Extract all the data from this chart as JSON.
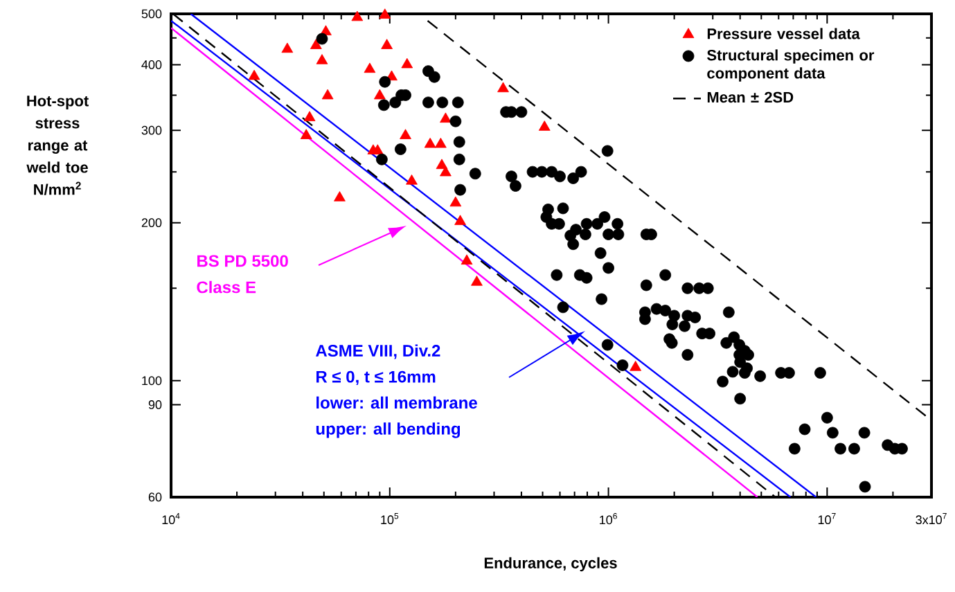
{
  "chart_data": {
    "type": "scatter",
    "xlabel": "Endurance, cycles",
    "ylabel": "Hot-spot stress range at weld toe N/mm$^{2}$",
    "log": "xy",
    "grid": false,
    "legend": "top right",
    "xlim": [
      10000,
      30000000
    ],
    "ylim": [
      60,
      500
    ],
    "xticks": [
      {
        "value": 10000,
        "label": "10$^{4}$"
      },
      {
        "value": 20000,
        "label": null
      },
      {
        "value": 30000,
        "label": null
      },
      {
        "value": 40000,
        "label": null
      },
      {
        "value": 50000,
        "label": null
      },
      {
        "value": 60000,
        "label": null
      },
      {
        "value": 70000,
        "label": null
      },
      {
        "value": 80000,
        "label": null
      },
      {
        "value": 90000,
        "label": null
      },
      {
        "value": 100000,
        "label": "10$^{5}$"
      },
      {
        "value": 200000,
        "label": null
      },
      {
        "value": 300000,
        "label": null
      },
      {
        "value": 400000,
        "label": null
      },
      {
        "value": 500000,
        "label": null
      },
      {
        "value": 600000,
        "label": null
      },
      {
        "value": 700000,
        "label": null
      },
      {
        "value": 800000,
        "label": null
      },
      {
        "value": 900000,
        "label": null
      },
      {
        "value": 1000000,
        "label": "10$^{6}$"
      },
      {
        "value": 2000000,
        "label": null
      },
      {
        "value": 3000000,
        "label": null
      },
      {
        "value": 4000000,
        "label": null
      },
      {
        "value": 5000000,
        "label": null
      },
      {
        "value": 6000000,
        "label": null
      },
      {
        "value": 7000000,
        "label": null
      },
      {
        "value": 8000000,
        "label": null
      },
      {
        "value": 9000000,
        "label": null
      },
      {
        "value": 10000000,
        "label": "10$^{7}$"
      },
      {
        "value": 20000000,
        "label": null
      },
      {
        "value": 30000000,
        "label": "3x10$^{7}$"
      }
    ],
    "yticks": [
      60,
      90,
      100,
      {
        "value": 150,
        "label": null
      },
      200,
      {
        "value": 250,
        "label": null
      },
      300,
      {
        "value": 350,
        "label": null
      },
      400,
      {
        "value": 450,
        "label": null
      },
      500
    ],
    "series": [
      {
        "type": "line",
        "color": "#ff00ff",
        "line_style": "solid",
        "marker": "none",
        "x": [
          10000,
          4800000
        ],
        "values": [
          470,
          60
        ]
      },
      {
        "type": "line",
        "color": "#0000ff",
        "line_style": "solid",
        "marker": "none",
        "x": [
          10000,
          6800000
        ],
        "values": [
          485,
          60
        ]
      },
      {
        "type": "line",
        "color": "#0000ff",
        "line_style": "solid",
        "marker": "none",
        "x": [
          12300,
          8900000
        ],
        "values": [
          500,
          60
        ]
      },
      {
        "type": "line",
        "name": "Mean ± 2SD",
        "color": "#000000",
        "line_style": "dashed",
        "marker": "none",
        "x": [
          10200,
          5800000
        ],
        "values": [
          500,
          60
        ]
      },
      {
        "type": "line",
        "color": "#000000",
        "line_style": "dashed",
        "marker": "none",
        "x": [
          149000,
          30000000
        ],
        "values": [
          485,
          84
        ]
      },
      {
        "name": "Pressure vessel data",
        "color": "#ff0000",
        "marker": "triangle",
        "x": [
          24000,
          34000,
          51000,
          46000,
          49000,
          52000,
          43000,
          41500,
          59000,
          71000,
          95000,
          97000,
          81000,
          102000,
          90000,
          120000,
          118000,
          84000,
          88000,
          126000,
          153000,
          171000,
          180000,
          173000,
          180000,
          200000,
          210000,
          225000,
          250000,
          330000,
          510000,
          1330000
        ],
        "values": [
          380,
          428,
          462,
          435,
          407,
          349,
          317,
          293,
          223,
          492,
          497,
          435,
          392,
          379,
          349,
          400,
          293,
          274,
          274,
          240,
          282,
          282,
          315,
          257,
          249,
          218,
          201,
          169,
          154,
          360,
          304,
          106
        ]
      },
      {
        "name": "Structural specimen or component data",
        "color": "#000000",
        "marker": "circle",
        "x": [
          49000,
          95000,
          94000,
          106000,
          113000,
          118000,
          92000,
          112000,
          150000,
          160000,
          150000,
          174000,
          205000,
          200000,
          208000,
          208000,
          210000,
          246000,
          340000,
          360000,
          400000,
          360000,
          376000,
          450000,
          496000,
          550000,
          600000,
          690000,
          750000,
          990000,
          530000,
          620000,
          520000,
          550000,
          595000,
          670000,
          710000,
          690000,
          785000,
          795000,
          890000,
          960000,
          1100000,
          1000000,
          1110000,
          920000,
          1000000,
          580000,
          740000,
          795000,
          930000,
          620000,
          990000,
          1160000,
          1490000,
          1570000,
          1820000,
          1490000,
          2300000,
          2600000,
          2850000,
          1470000,
          1470000,
          1660000,
          1820000,
          2000000,
          1960000,
          2230000,
          2300000,
          2490000,
          1900000,
          1950000,
          2680000,
          2900000,
          2300000,
          3550000,
          3750000,
          3460000,
          3970000,
          4200000,
          4360000,
          3970000,
          4000000,
          4300000,
          3700000,
          4200000,
          3330000,
          4940000,
          6150000,
          6700000,
          9300000,
          4000000,
          10000000,
          7900000,
          10600000,
          14800000,
          7100000,
          11500000,
          13300000,
          18900000,
          20400000,
          22000000,
          14900000
        ],
        "values": [
          448,
          371,
          335,
          339,
          350,
          350,
          264,
          276,
          389,
          379,
          339,
          339,
          339,
          312,
          285,
          264,
          231,
          248,
          325,
          325,
          325,
          245,
          235,
          250,
          250,
          250,
          245,
          243,
          250,
          274,
          212,
          213,
          205,
          199,
          199,
          189,
          194,
          182,
          190,
          199,
          199,
          205,
          199,
          190,
          190,
          175,
          164,
          159,
          159,
          157,
          143,
          138,
          117,
          107,
          190,
          190,
          159,
          152,
          150,
          150,
          150,
          135,
          131,
          137,
          136,
          133,
          128,
          127,
          133,
          132,
          120,
          118,
          123,
          123,
          112,
          135,
          121,
          118,
          117,
          114,
          112,
          112,
          108.5,
          105.6,
          104,
          103.5,
          99.6,
          102,
          103.5,
          103.5,
          103.5,
          92.4,
          85,
          80.8,
          79.6,
          79.6,
          74.2,
          74.2,
          74.2,
          75.4,
          74.2,
          74.2,
          62.8
        ]
      }
    ],
    "annotations": [
      "BS PD 5500",
      "Class E",
      "ASME VIII, Div.2",
      "R ≤ 0, t ≤ 16mm",
      "lower: all membrane",
      "upper: all bending"
    ]
  }
}
